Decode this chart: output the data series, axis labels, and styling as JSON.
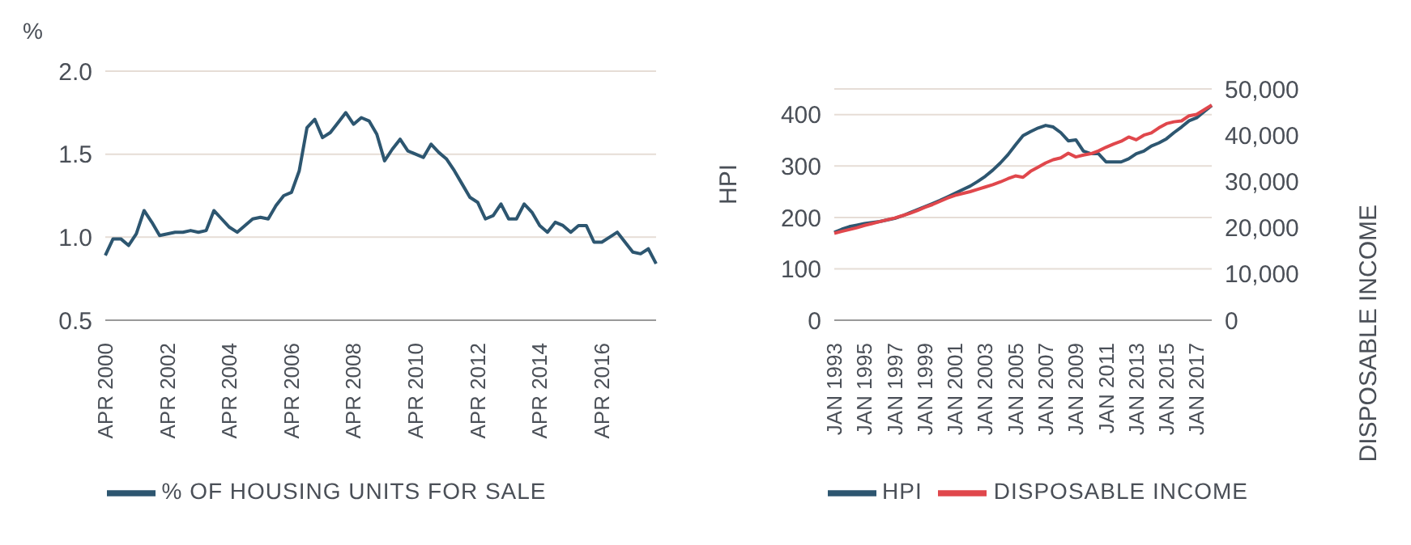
{
  "chart_data": [
    {
      "type": "line",
      "ylabel": "%",
      "categories": [
        "APR 2000",
        null,
        null,
        null,
        null,
        null,
        null,
        null,
        "APR 2002",
        null,
        null,
        null,
        null,
        null,
        null,
        null,
        "APR 2004",
        null,
        null,
        null,
        null,
        null,
        null,
        null,
        "APR 2006",
        null,
        null,
        null,
        null,
        null,
        null,
        null,
        "APR 2008",
        null,
        null,
        null,
        null,
        null,
        null,
        null,
        "APR 2010",
        null,
        null,
        null,
        null,
        null,
        null,
        null,
        "APR 2012",
        null,
        null,
        null,
        null,
        null,
        null,
        null,
        "APR 2014",
        null,
        null,
        null,
        null,
        null,
        null,
        null,
        "APR 2016",
        null,
        null,
        null,
        null,
        null,
        null,
        null
      ],
      "series": [
        {
          "name": "% OF HOUSING UNITS FOR SALE",
          "color": "#2d5670",
          "values": [
            0.89,
            0.99,
            0.99,
            0.95,
            1.02,
            1.16,
            1.09,
            1.01,
            1.02,
            1.03,
            1.03,
            1.04,
            1.03,
            1.04,
            1.16,
            1.11,
            1.06,
            1.03,
            1.07,
            1.11,
            1.12,
            1.11,
            1.19,
            1.25,
            1.27,
            1.4,
            1.66,
            1.71,
            1.6,
            1.63,
            1.69,
            1.75,
            1.68,
            1.72,
            1.7,
            1.62,
            1.46,
            1.53,
            1.59,
            1.52,
            1.5,
            1.48,
            1.56,
            1.51,
            1.47,
            1.4,
            1.32,
            1.24,
            1.21,
            1.11,
            1.13,
            1.2,
            1.11,
            1.11,
            1.2,
            1.15,
            1.07,
            1.03,
            1.09,
            1.07,
            1.03,
            1.07,
            1.07,
            0.97,
            0.97,
            1.0,
            1.03,
            0.97,
            0.91,
            0.9,
            0.93,
            0.84
          ]
        }
      ],
      "ylim": [
        0.5,
        2.0
      ],
      "yticks": [
        {
          "value": 0.5,
          "label": "0.5"
        },
        {
          "value": 1,
          "label": "1.0"
        },
        {
          "value": 1.5,
          "label": "1.5"
        },
        {
          "value": 2,
          "label": "2.0"
        }
      ],
      "grid": "y",
      "legend": "bottom"
    },
    {
      "type": "line",
      "ylabel": "HPI",
      "y2label": "DISPOSABLE INCOME",
      "categories": [
        "JAN 1993",
        null,
        null,
        null,
        "JAN 1995",
        null,
        null,
        null,
        "JAN 1997",
        null,
        null,
        null,
        "JAN 1999",
        null,
        null,
        null,
        "JAN 2001",
        null,
        null,
        null,
        "JAN 2003",
        null,
        null,
        null,
        "JAN 2005",
        null,
        null,
        null,
        "JAN 2007",
        null,
        null,
        null,
        "JAN 2009",
        null,
        null,
        null,
        "JAN 2011",
        null,
        null,
        null,
        "JAN 2013",
        null,
        null,
        null,
        "JAN 2015",
        null,
        null,
        null,
        "JAN 2017",
        null,
        null
      ],
      "series": [
        {
          "name": "HPI",
          "color": "#2d5670",
          "values": [
            171,
            177,
            182,
            185,
            188,
            190,
            192,
            195,
            198,
            203,
            209,
            215,
            221,
            227,
            233,
            240,
            247,
            254,
            261,
            270,
            280,
            292,
            306,
            322,
            341,
            359,
            367,
            374,
            379,
            376,
            365,
            349,
            351,
            329,
            324,
            324,
            308,
            308,
            308,
            314,
            324,
            329,
            339,
            345,
            353,
            365,
            376,
            388,
            394,
            406,
            418
          ]
        },
        {
          "name": "DISPOSABLE INCOME",
          "color": "#e0474c",
          "axis": "y2",
          "values": [
            18800,
            19200,
            19600,
            20000,
            20500,
            20900,
            21300,
            21700,
            22100,
            22600,
            23100,
            23700,
            24400,
            25000,
            25700,
            26400,
            27000,
            27400,
            27800,
            28300,
            28800,
            29300,
            29900,
            30600,
            31200,
            30900,
            32200,
            33100,
            34000,
            34700,
            35100,
            36100,
            35300,
            35700,
            36000,
            36600,
            37400,
            38100,
            38700,
            39600,
            39000,
            40000,
            40500,
            41600,
            42500,
            42900,
            43100,
            44200,
            44500,
            45500,
            46500
          ]
        }
      ],
      "ylim": [
        0,
        450
      ],
      "yticks": [
        0,
        100,
        200,
        300,
        400
      ],
      "y2lim": [
        0,
        50000
      ],
      "y2ticks": [
        {
          "value": 0,
          "label": "0"
        },
        {
          "value": 10000,
          "label": "10,000"
        },
        {
          "value": 20000,
          "label": "20,000"
        },
        {
          "value": 30000,
          "label": "30,000"
        },
        {
          "value": 40000,
          "label": "40,000"
        },
        {
          "value": 50000,
          "label": "50,000"
        }
      ],
      "grid": "y",
      "legend": "bottom"
    }
  ]
}
